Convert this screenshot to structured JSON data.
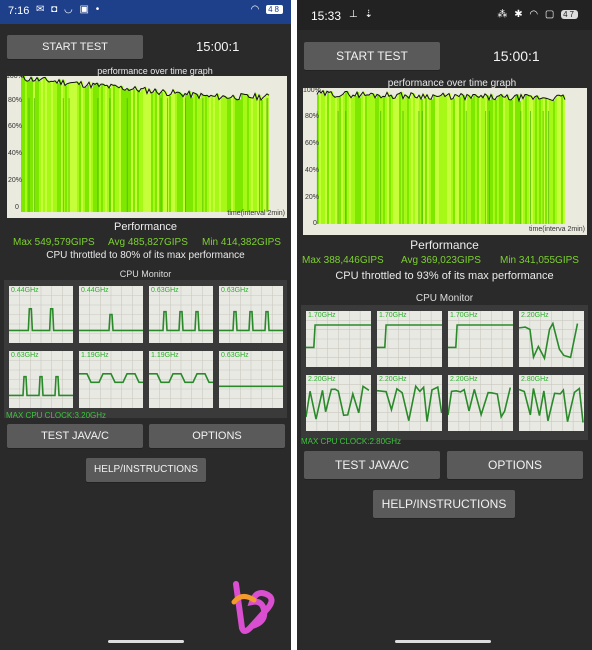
{
  "left": {
    "status": {
      "time": "7:16",
      "battery": "48"
    },
    "start_button": "START TEST",
    "timer": "15:00:1",
    "graph": {
      "title": "performance over time graph",
      "y_labels": [
        "100%",
        "80%",
        "60%",
        "40%",
        "20%",
        "0"
      ],
      "x_label": "time(interval 2min)"
    },
    "performance": {
      "title": "Performance",
      "max": "Max 549,579GIPS",
      "avg": "Avg 485,827GIPS",
      "min": "Min 414,382GIPS",
      "throttle": "CPU throttled to 80% of its max performance"
    },
    "cpu_monitor": {
      "title": "CPU Monitor",
      "freqs": [
        "0.44GHz",
        "0.44GHz",
        "0.63GHz",
        "0.63GHz",
        "0.63GHz",
        "1.19GHz",
        "1.19GHz",
        "0.63GHz"
      ],
      "max_clock": "MAX CPU CLOCK:3.20GHz"
    },
    "test_button": "TEST JAVA/C",
    "options_button": "OPTIONS",
    "help_button": "HELP/INSTRUCTIONS"
  },
  "right": {
    "status": {
      "time": "15:33",
      "battery": "47"
    },
    "start_button": "START TEST",
    "timer": "15:00:1",
    "graph": {
      "title": "performance over time graph",
      "y_labels": [
        "100%",
        "80%",
        "60%",
        "40%",
        "20%",
        "0"
      ],
      "x_label": "time(interva 2min)"
    },
    "performance": {
      "title": "Performance",
      "max": "Max 388,446GIPS",
      "avg": "Avg 369,023GIPS",
      "min": "Min 341,055GIPS",
      "throttle": "CPU throttled to 93% of its max performance"
    },
    "cpu_monitor": {
      "title": "CPU Monitor",
      "freqs": [
        "1.70GHz",
        "1.70GHz",
        "1.70GHz",
        "2.20GHz",
        "2.20GHz",
        "2.20GHz",
        "2.20GHz",
        "2.80GHz"
      ],
      "max_clock": "MAX CPU CLOCK:2.80GHz"
    },
    "test_button": "TEST JAVA/C",
    "options_button": "OPTIONS",
    "help_button": "HELP/INSTRUCTIONS"
  },
  "colors": {
    "status_bar": "#1e3f8a",
    "background": "#2a2a2a",
    "button": "#5a5a5a",
    "graph_fill": "#8ef400",
    "stat_green": "#7cd12f",
    "cpu_line": "#2a8a2a"
  }
}
